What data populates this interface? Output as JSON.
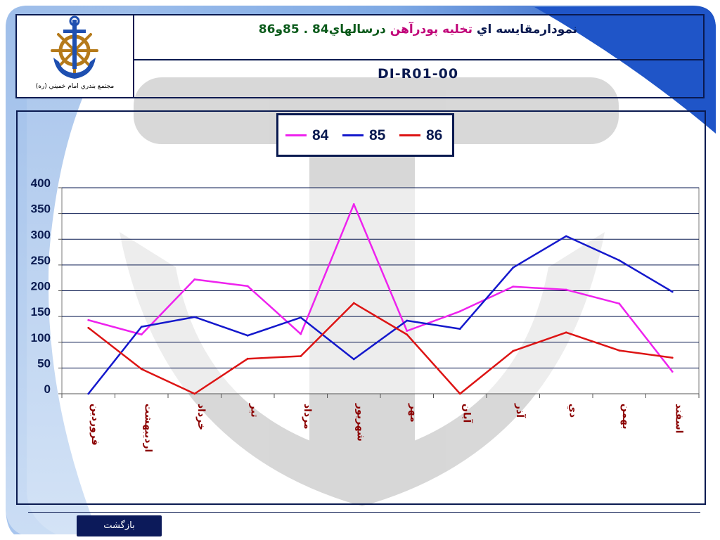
{
  "header": {
    "title_parts": [
      {
        "text": "نمودارمقايسه اي ",
        "color": "#0a1a50"
      },
      {
        "text": "تخليه پودرآهن ",
        "color": "#c00078"
      },
      {
        "text": "درسالهاي84 . 85و86",
        "color": "#0a5a1a"
      }
    ],
    "document_code": "DI-R01-00",
    "logo_caption": "مجتمع بندري امام خميني (ره)"
  },
  "legend": [
    {
      "label": "84",
      "color": "#ee22ee"
    },
    {
      "label": "85",
      "color": "#1418cc"
    },
    {
      "label": "86",
      "color": "#dd1414"
    }
  ],
  "chart_data": {
    "type": "line",
    "categories": [
      "فروردين",
      "ارديبهشت",
      "خرداد",
      "تير",
      "مرداد",
      "شهريور",
      "مهر",
      "آبان",
      "آذر",
      "دي",
      "بهمن",
      "اسفند"
    ],
    "series": [
      {
        "name": "84",
        "color": "#ee22ee",
        "values": [
          143,
          115,
          222,
          209,
          116,
          368,
          122,
          160,
          208,
          202,
          175,
          43
        ]
      },
      {
        "name": "85",
        "color": "#1418cc",
        "values": [
          0,
          130,
          149,
          113,
          148,
          67,
          142,
          126,
          245,
          306,
          259,
          198
        ]
      },
      {
        "name": "86",
        "color": "#dd1414",
        "values": [
          128,
          48,
          0,
          68,
          73,
          176,
          115,
          0,
          83,
          119,
          84,
          70
        ]
      }
    ],
    "ylim": [
      0,
      400
    ],
    "yticks": [
      "0",
      "50",
      "100",
      "150",
      "200",
      "250",
      "300",
      "350",
      "400"
    ],
    "grid": true,
    "legend_position": "top-center"
  },
  "footer": {
    "back_label": "بازگشت"
  },
  "colors": {
    "frame": "#0a1a50",
    "category_label": "#8b0000",
    "grid": "#0a1a50"
  }
}
